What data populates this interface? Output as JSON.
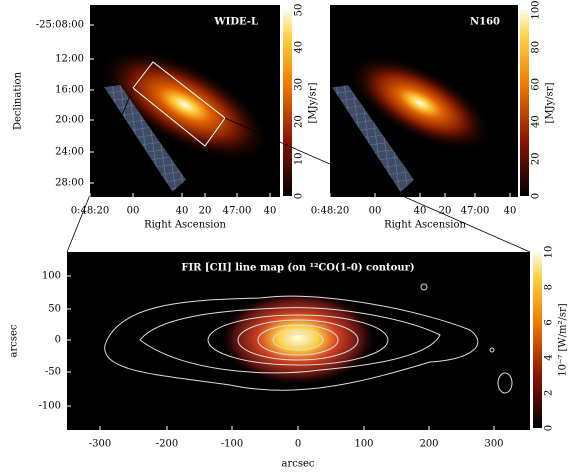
{
  "panels": [
    {
      "label": "WIDE-L",
      "colorbar_unit": "[MJy/sr]",
      "colorbar_ticks": [
        "0",
        "10",
        "20",
        "30",
        "40",
        "50"
      ],
      "y_axis_label": "Declination",
      "x_axis_label": "Right Ascension",
      "y_ticks": [
        "-25:08:00",
        "12:00",
        "16:00",
        "20:00",
        "24:00",
        "28:00"
      ],
      "x_ticks": [
        "0:48:20",
        "00",
        "40",
        "20",
        "47:00",
        "40"
      ]
    },
    {
      "label": "N160",
      "colorbar_unit": "[MJy/sr]",
      "colorbar_ticks": [
        "0",
        "20",
        "40",
        "60",
        "80",
        "100"
      ],
      "x_axis_label": "Right Ascension",
      "x_ticks": [
        "0:48:20",
        "00",
        "40",
        "20",
        "47:00",
        "40"
      ]
    },
    {
      "title": "FIR [CII] line map (on ¹²CO(1-0) contour)",
      "colorbar_unit": "10⁻⁷ [W/m²/sr]",
      "colorbar_ticks": [
        "0",
        "2",
        "4",
        "6",
        "8",
        "10"
      ],
      "y_axis_label": "arcsec",
      "x_axis_label": "arcsec",
      "y_ticks": [
        "100",
        "50",
        "0",
        "-50",
        "-100"
      ],
      "x_ticks": [
        "-300",
        "-200",
        "-100",
        "0",
        "100",
        "200",
        "300"
      ]
    }
  ]
}
